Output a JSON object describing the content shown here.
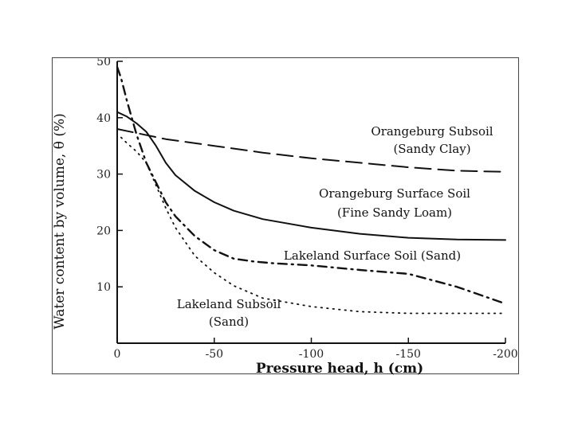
{
  "chart_data": {
    "type": "line",
    "title": "",
    "xlabel": "Pressure head, h  (cm)",
    "ylabel": "Water content by volume, θ (%)",
    "xlim": [
      0,
      -200
    ],
    "ylim": [
      0,
      50
    ],
    "x_ticks": [
      0,
      -50,
      -100,
      -150,
      -200
    ],
    "x_tick_labels": [
      "0",
      "-50",
      "-100",
      "-150",
      "-200"
    ],
    "y_ticks": [
      10,
      20,
      30,
      40,
      50
    ],
    "y_tick_labels": [
      "10",
      "20",
      "30",
      "40",
      "50"
    ],
    "grid": false,
    "series": [
      {
        "name": "Orangeburg Subsoil (Sandy Clay)",
        "dash": "dashed",
        "x": [
          0,
          -25,
          -50,
          -75,
          -100,
          -125,
          -150,
          -175,
          -200
        ],
        "y": [
          38,
          36.2,
          35,
          33.8,
          32.8,
          32,
          31.2,
          30.6,
          30.4
        ]
      },
      {
        "name": "Orangeburg Surface Soil (Fine Sandy Loam)",
        "dash": "solid",
        "x": [
          0,
          -5,
          -10,
          -15,
          -20,
          -25,
          -30,
          -40,
          -50,
          -60,
          -75,
          -100,
          -125,
          -150,
          -175,
          -200
        ],
        "y": [
          41,
          40.2,
          39,
          37.5,
          35,
          32,
          29.8,
          27,
          25,
          23.5,
          22,
          20.5,
          19.4,
          18.7,
          18.4,
          18.3
        ]
      },
      {
        "name": "Lakeland Surface Soil (Sand)",
        "dash": "dash-dot",
        "x": [
          0,
          -2,
          -5,
          -10,
          -15,
          -20,
          -25,
          -30,
          -40,
          -50,
          -60,
          -70,
          -80,
          -100,
          -125,
          -150,
          -175,
          -200
        ],
        "y": [
          49,
          47,
          43,
          37,
          32,
          28.5,
          25,
          22.5,
          19,
          16.5,
          15,
          14.5,
          14.2,
          13.8,
          13,
          12.3,
          10,
          7
        ]
      },
      {
        "name": "Lakeland Subsoil (Sand)",
        "dash": "dotted",
        "x": [
          -2,
          -5,
          -10,
          -15,
          -20,
          -25,
          -30,
          -40,
          -50,
          -60,
          -75,
          -100,
          -125,
          -150,
          -175,
          -200
        ],
        "y": [
          36.5,
          35.5,
          34,
          32,
          28,
          24,
          20.5,
          15.5,
          12.5,
          10.2,
          8,
          6.5,
          5.6,
          5.3,
          5.3,
          5.3
        ]
      }
    ],
    "annotations": [
      {
        "series": 0,
        "lines": [
          "Orangeburg Subsoil",
          "(Sandy Clay)"
        ]
      },
      {
        "series": 1,
        "lines": [
          "Orangeburg Surface Soil",
          "(Fine Sandy Loam)"
        ]
      },
      {
        "series": 2,
        "lines": [
          "Lakeland Surface Soil (Sand)"
        ]
      },
      {
        "series": 3,
        "lines": [
          "Lakeland Subsoil",
          "(Sand)"
        ]
      }
    ]
  }
}
